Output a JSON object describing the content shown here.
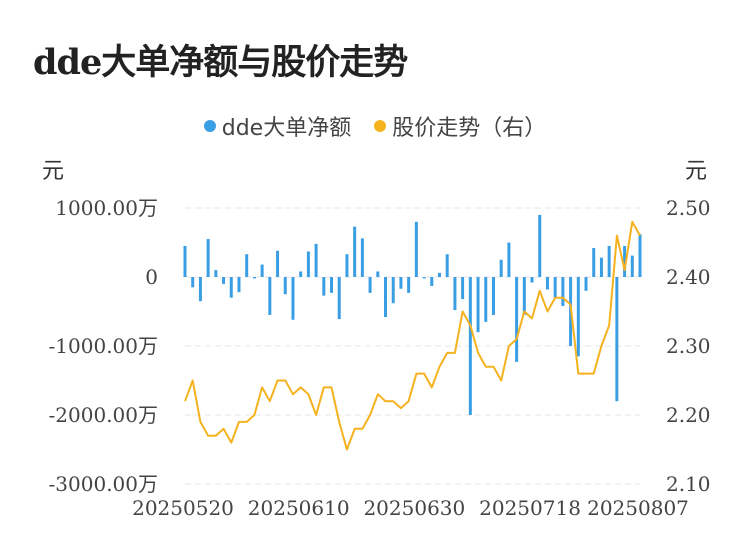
{
  "chart_data": {
    "type": "bar+line",
    "title": "dde大单净额与股价走势",
    "legend": [
      {
        "label": "dde大单净额",
        "color": "#3a9ee4"
      },
      {
        "label": "股价走势（右）",
        "color": "#f5b21e"
      }
    ],
    "y_left": {
      "unit": "元",
      "range": [
        -3000,
        1000
      ],
      "ticks": [
        1000,
        0,
        -1000,
        -2000,
        -3000
      ],
      "tick_labels": [
        "1000.00万",
        "0",
        "-1000.00万",
        "-2000.00万",
        "-3000.00万"
      ]
    },
    "y_right": {
      "unit": "元",
      "range": [
        2.1,
        2.5
      ],
      "ticks": [
        2.5,
        2.4,
        2.3,
        2.2,
        2.1
      ],
      "tick_labels": [
        "2.50",
        "2.40",
        "2.30",
        "2.20",
        "2.10"
      ]
    },
    "x_tick_labels": [
      "20250520",
      "20250610",
      "20250630",
      "20250718",
      "20250807"
    ],
    "x_tick_index": [
      0,
      15,
      30,
      45,
      60
    ],
    "bar_values": [
      450,
      -150,
      -350,
      550,
      100,
      -100,
      -300,
      -220,
      330,
      -20,
      180,
      -550,
      380,
      -250,
      -620,
      80,
      370,
      480,
      -270,
      -230,
      -610,
      330,
      730,
      560,
      -230,
      80,
      -580,
      -380,
      -170,
      -230,
      800,
      -20,
      -130,
      60,
      330,
      -480,
      -320,
      -2000,
      -800,
      -650,
      -550,
      250,
      500,
      -1230,
      -550,
      -80,
      900,
      -180,
      -300,
      -420,
      -1000,
      -1150,
      -200,
      420,
      280,
      450,
      -1800,
      450,
      310,
      620
    ],
    "line_values": [
      2.22,
      2.25,
      2.19,
      2.17,
      2.17,
      2.18,
      2.16,
      2.19,
      2.19,
      2.2,
      2.24,
      2.22,
      2.25,
      2.25,
      2.23,
      2.24,
      2.23,
      2.2,
      2.24,
      2.24,
      2.19,
      2.15,
      2.18,
      2.18,
      2.2,
      2.23,
      2.22,
      2.22,
      2.21,
      2.22,
      2.26,
      2.26,
      2.24,
      2.27,
      2.29,
      2.29,
      2.35,
      2.33,
      2.29,
      2.27,
      2.27,
      2.25,
      2.3,
      2.31,
      2.35,
      2.34,
      2.38,
      2.35,
      2.37,
      2.37,
      2.36,
      2.26,
      2.26,
      2.26,
      2.3,
      2.33,
      2.46,
      2.41,
      2.48,
      2.46
    ]
  }
}
